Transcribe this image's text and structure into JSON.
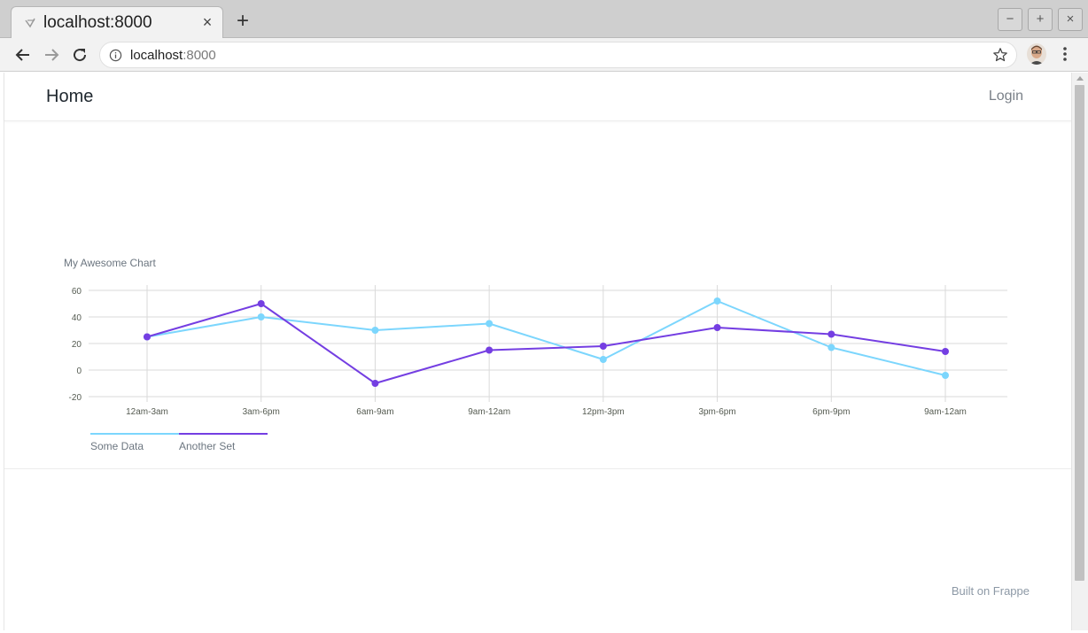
{
  "browser": {
    "tab_title": "localhost:8000",
    "url_host": "localhost",
    "url_port": ":8000"
  },
  "navbar": {
    "brand": "Home",
    "login": "Login"
  },
  "footer": {
    "credit": "Built on Frappe"
  },
  "colors": {
    "some_data": "#7cd6fd",
    "another_set": "#743ee2",
    "gridline": "#dadada",
    "tick_text": "#555b51"
  },
  "chart_data": {
    "type": "line",
    "title": "My Awesome Chart",
    "categories": [
      "12am-3am",
      "3am-6pm",
      "6am-9am",
      "9am-12am",
      "12pm-3pm",
      "3pm-6pm",
      "6pm-9pm",
      "9am-12am"
    ],
    "ylim": [
      -20,
      60
    ],
    "yticks": [
      60,
      40,
      20,
      0,
      -20
    ],
    "grid": true,
    "legend_position": "bottom-left",
    "series": [
      {
        "name": "Some Data",
        "values": [
          25,
          40,
          30,
          35,
          8,
          52,
          17,
          -4
        ]
      },
      {
        "name": "Another Set",
        "values": [
          25,
          50,
          -10,
          15,
          18,
          32,
          27,
          14
        ]
      }
    ]
  }
}
